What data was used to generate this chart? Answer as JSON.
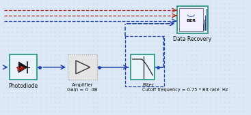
{
  "bg_color": "#dce8f5",
  "grid_color": "#c5d8ec",
  "teal_color": "#3a9e8c",
  "blue_color": "#2244aa",
  "red_color": "#aa2222",
  "gray_fill": "#e8e8e8",
  "comp_fill": "#e8f2f8",
  "photodiode_label": "Photodiode",
  "amplifier_label": "Amplifier\nGain = 0  dB",
  "filter_label": "Filter\nCutoff frequency = 0.75 * Bit rate  Hz",
  "data_recovery_label": "Data Recovery"
}
